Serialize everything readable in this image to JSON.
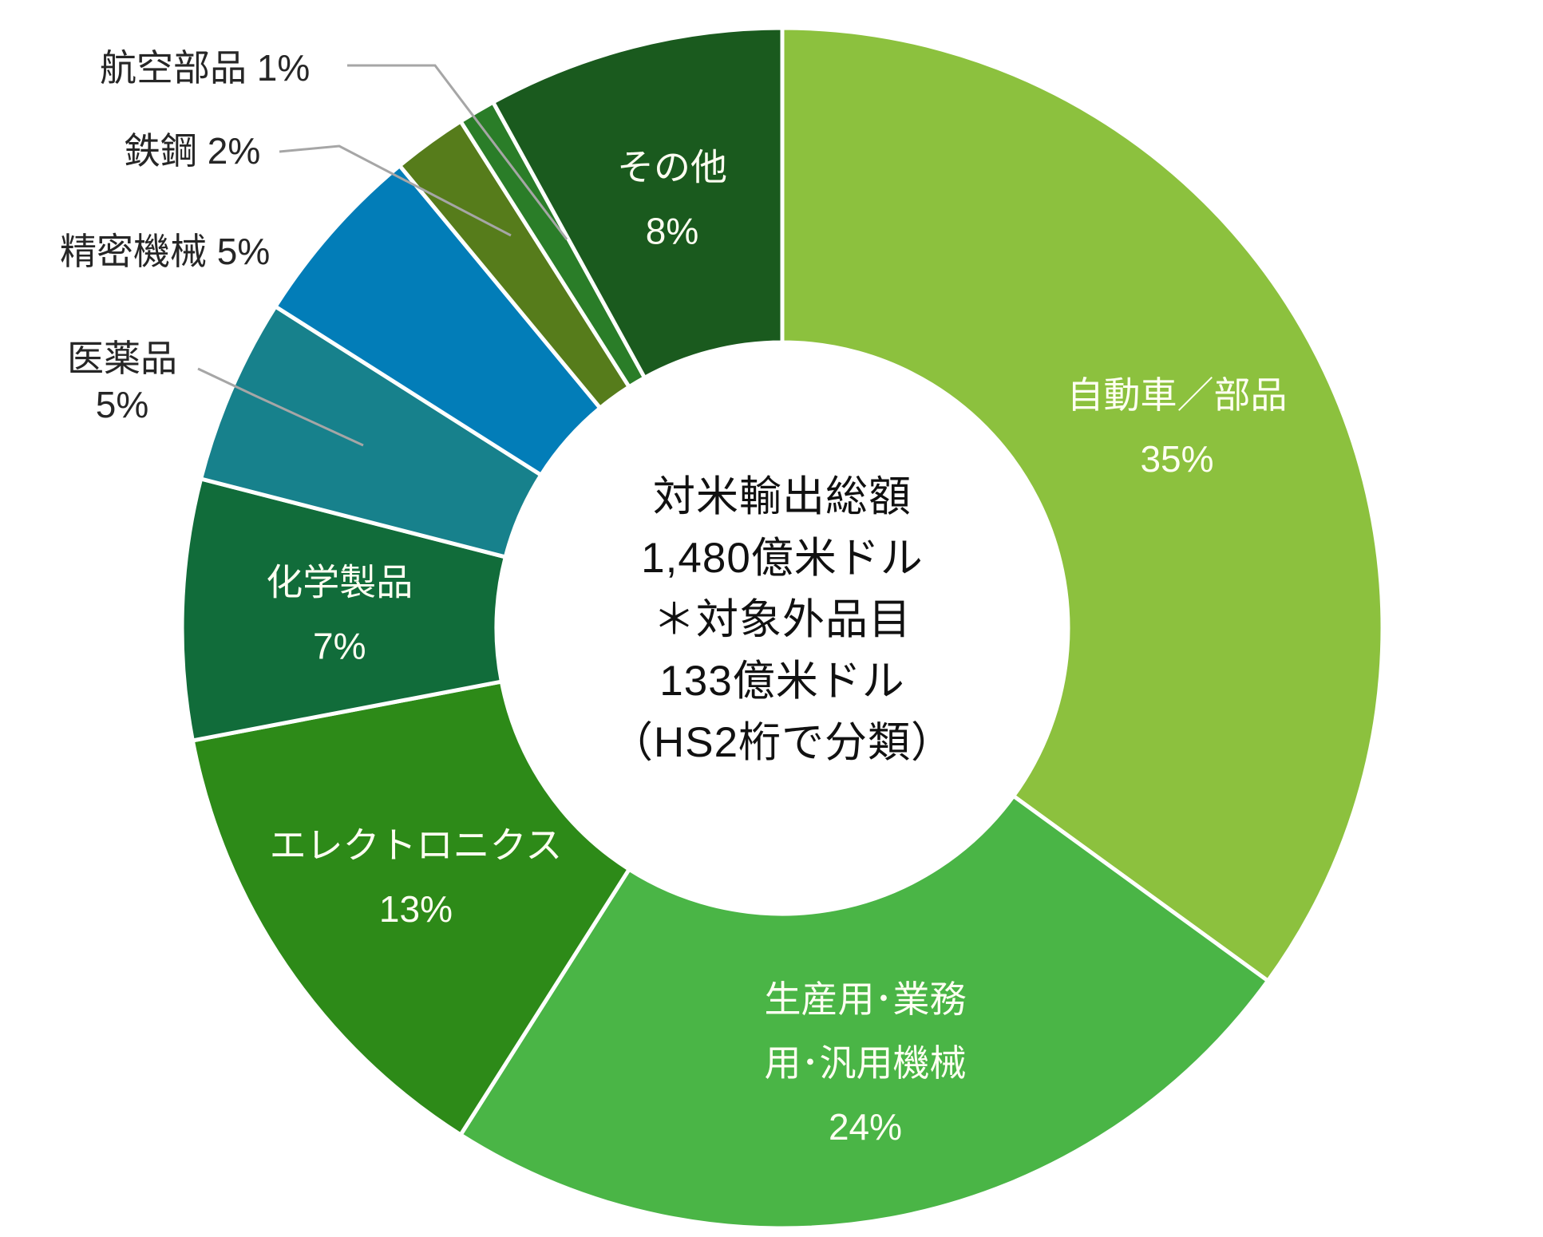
{
  "chart_data": {
    "type": "pie",
    "subtype": "donut",
    "title": "",
    "direction": "clockwise",
    "start_angle_deg": 0,
    "legend_position": "none",
    "grid": false,
    "center_text_lines": [
      "対米輸出総額",
      "1,480億米ドル",
      "＊対象外品目",
      "133億米ドル",
      "（HS2桁で分類）"
    ],
    "categories": [
      "自動車／部品",
      "生産用･業務用･汎用機械",
      "エレクトロニクス",
      "化学製品",
      "医薬品",
      "精密機械",
      "鉄鋼",
      "航空部品",
      "その他"
    ],
    "values": [
      35,
      24,
      13,
      7,
      5,
      5,
      2,
      1,
      8
    ],
    "slices": [
      {
        "id": "automobiles",
        "label": "自動車／部品",
        "value": 35,
        "pct_label": "35%",
        "color": "#8CC13E",
        "label_position": "inside",
        "label_lines": [
          "自動車／部品",
          "35%"
        ]
      },
      {
        "id": "machinery",
        "label": "生産用･業務用･汎用機械",
        "value": 24,
        "pct_label": "24%",
        "color": "#4AB546",
        "label_position": "inside",
        "label_lines": [
          "生産用･業務",
          "用･汎用機械",
          "24%"
        ]
      },
      {
        "id": "electronics",
        "label": "エレクトロニクス",
        "value": 13,
        "pct_label": "13%",
        "color": "#2D8A18",
        "label_position": "inside",
        "label_lines": [
          "エレクトロニクス",
          "13%"
        ]
      },
      {
        "id": "chemicals",
        "label": "化学製品",
        "value": 7,
        "pct_label": "7%",
        "color": "#116C3A",
        "label_position": "inside",
        "label_lines": [
          "化学製品",
          "7%"
        ]
      },
      {
        "id": "pharmaceuticals",
        "label": "医薬品",
        "value": 5,
        "pct_label": "5%",
        "color": "#17818C",
        "label_position": "outside",
        "label_lines": [
          "医薬品",
          "5%"
        ]
      },
      {
        "id": "precision",
        "label": "精密機械",
        "value": 5,
        "pct_label": "5%",
        "color": "#027DB8",
        "label_position": "outside",
        "label_lines": [
          "精密機械 5%"
        ]
      },
      {
        "id": "steel",
        "label": "鉄鋼",
        "value": 2,
        "pct_label": "2%",
        "color": "#567C1B",
        "label_position": "outside",
        "label_lines": [
          "鉄鋼 2%"
        ]
      },
      {
        "id": "aviation",
        "label": "航空部品",
        "value": 1,
        "pct_label": "1%",
        "color": "#2A7D28",
        "label_position": "outside",
        "label_lines": [
          "航空部品 1%"
        ]
      },
      {
        "id": "others",
        "label": "その他",
        "value": 8,
        "pct_label": "8%",
        "color": "#1A5A1E",
        "label_position": "inside",
        "label_lines": [
          "その他",
          "8%"
        ]
      }
    ],
    "colors_meta": {
      "background": "#FFFFFF",
      "slice_separator": "#FFFFFF",
      "inside_label_text": "#FFFFF2",
      "outside_label_text": "#262626",
      "center_text": "#111111",
      "leader_line": "#A6A6A6"
    }
  }
}
